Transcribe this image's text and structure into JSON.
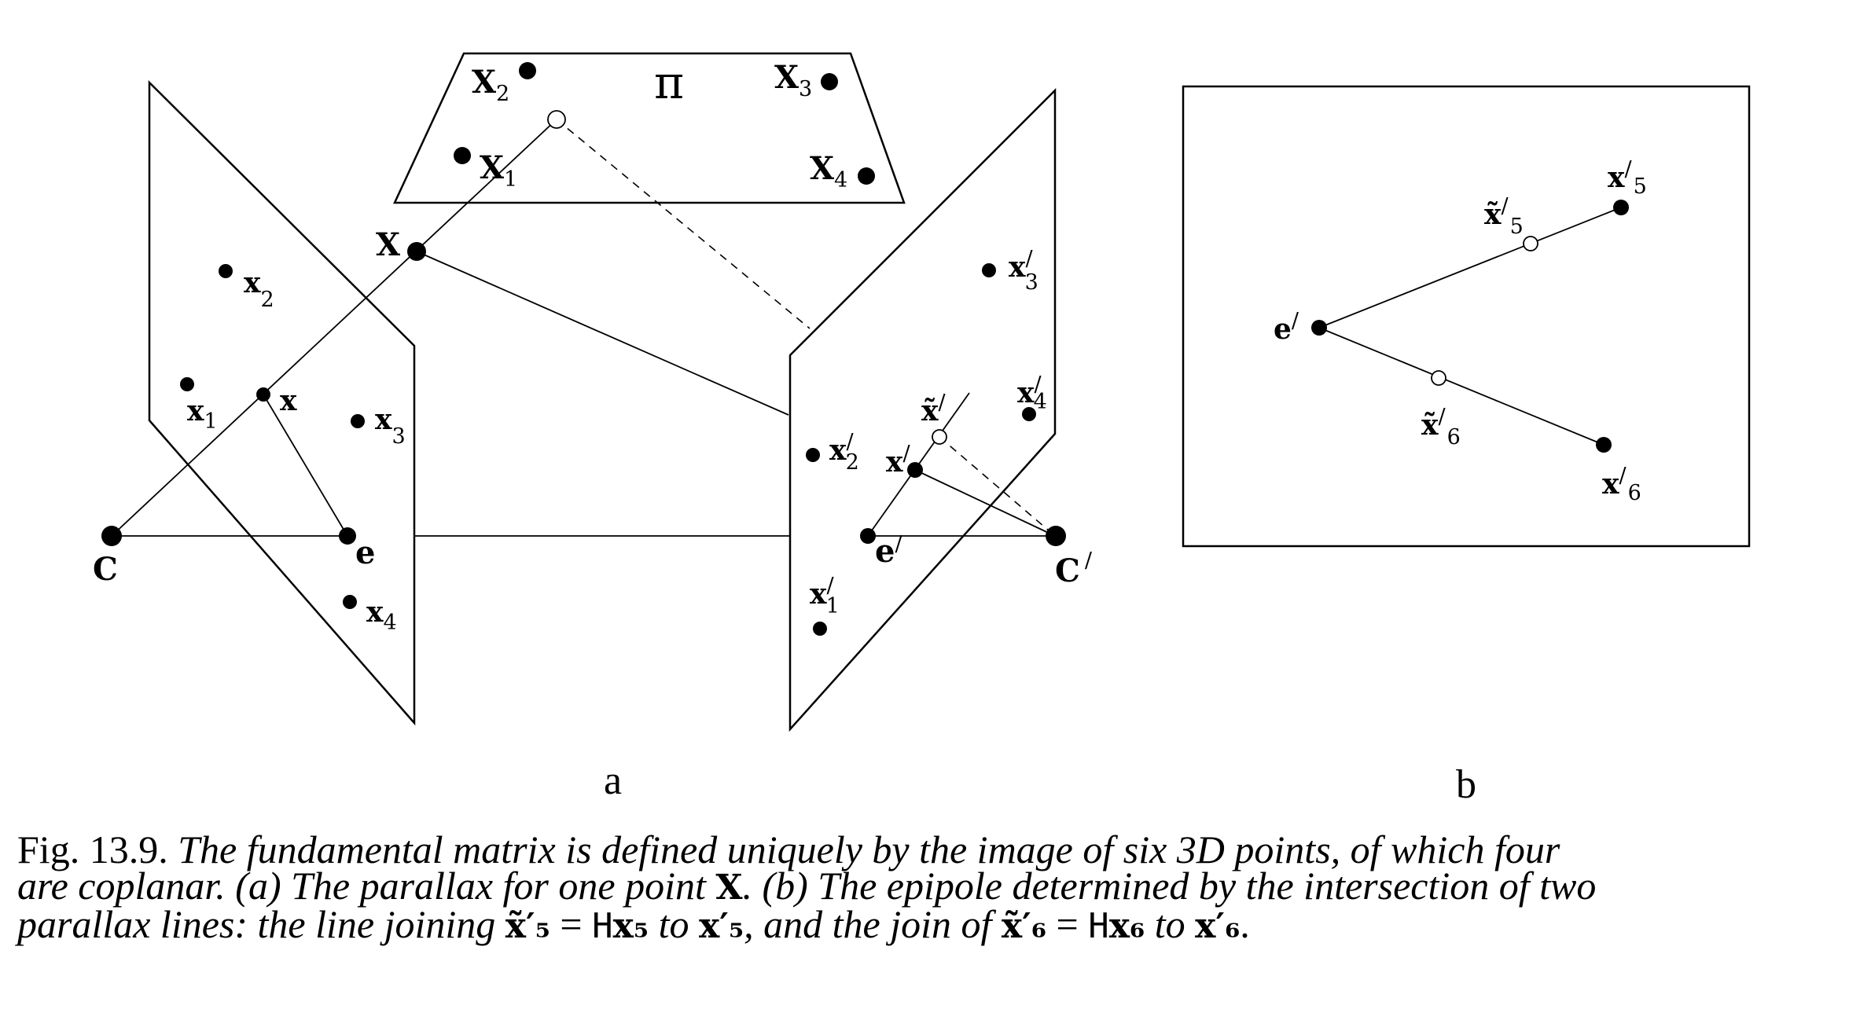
{
  "figure": {
    "plane_label": "π",
    "world_points": [
      {
        "name": "X",
        "sub": "1"
      },
      {
        "name": "X",
        "sub": "2"
      },
      {
        "name": "X",
        "sub": "3"
      },
      {
        "name": "X",
        "sub": "4"
      },
      {
        "name": "X",
        "sub": ""
      }
    ],
    "left_image": {
      "points": [
        {
          "name": "x",
          "sub": "1"
        },
        {
          "name": "x",
          "sub": "2"
        },
        {
          "name": "x",
          "sub": "3"
        },
        {
          "name": "x",
          "sub": "4"
        },
        {
          "name": "x",
          "sub": ""
        }
      ],
      "epipole": "e",
      "camera_centre": "C"
    },
    "right_image": {
      "points": [
        {
          "name": "x",
          "prime": "/",
          "sub": "1"
        },
        {
          "name": "x",
          "prime": "/",
          "sub": "2"
        },
        {
          "name": "x",
          "prime": "/",
          "sub": "3"
        },
        {
          "name": "x",
          "prime": "/",
          "sub": "4"
        },
        {
          "name": "x",
          "prime": "/",
          "sub": ""
        },
        {
          "name": "x̃",
          "prime": "/",
          "sub": ""
        }
      ],
      "epipole": {
        "name": "e",
        "prime": "/"
      },
      "camera_centre": {
        "name": "C",
        "prime": "/"
      }
    },
    "panel_b": {
      "epipole": {
        "name": "e",
        "prime": "/"
      },
      "points": [
        {
          "name": "x",
          "prime": "/",
          "sub": "5"
        },
        {
          "name": "x",
          "prime": "/",
          "sub": "6"
        },
        {
          "name": "x̃",
          "prime": "/",
          "sub": "5"
        },
        {
          "name": "x̃",
          "prime": "/",
          "sub": "6"
        }
      ]
    },
    "panel_labels": {
      "a": "a",
      "b": "b"
    }
  },
  "caption": {
    "fig_num": "Fig. 13.9.",
    "line1_text": "The fundamental matrix is defined uniquely by the image of six 3D points, of which four",
    "line2_text_a": "are coplanar. (a) The parallax for one point",
    "line2_symbol_X": "X",
    "line2_text_b": ". (b) The epipole determined by the intersection of two",
    "line3_text_a": "parallax lines: the line joining",
    "line3_math_1": "x̃′₅",
    "line3_eq_1": " = ",
    "line3_H_1": "H",
    "line3_math_2": "x₅",
    "line3_to_1": " to ",
    "line3_math_3": "x′₅",
    "line3_text_b": ", and the join of",
    "line3_math_4": "x̃′₆",
    "line3_eq_2": " = ",
    "line3_H_2": "H",
    "line3_math_5": "x₆",
    "line3_to_2": " to ",
    "line3_math_6": "x′₆",
    "line3_end": "."
  }
}
